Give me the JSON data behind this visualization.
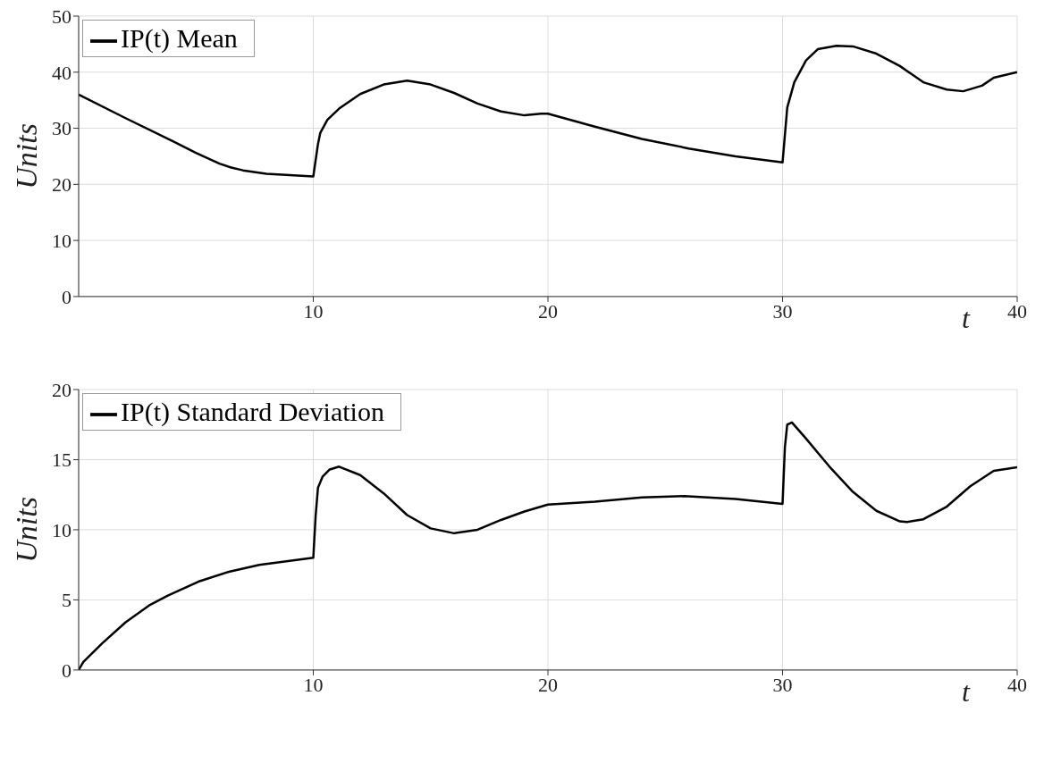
{
  "chart_data": [
    {
      "type": "line",
      "ylabel": "Units",
      "xlabel": "t",
      "xlim": [
        0,
        40
      ],
      "xticks": [
        10,
        20,
        30,
        40
      ],
      "ylim": [
        0,
        50
      ],
      "yticks": [
        0,
        10,
        20,
        30,
        40,
        50
      ],
      "grid": true,
      "legend": "top left",
      "line_style": "solid",
      "x": [
        0,
        2,
        4,
        5,
        6,
        6.5,
        7,
        8,
        10,
        10.2,
        10.3,
        10.6,
        11.1,
        12,
        13,
        14,
        15,
        16,
        17,
        18,
        19,
        19.7,
        20,
        22,
        24,
        26,
        28,
        30,
        30.1,
        30.2,
        30.5,
        31,
        31.5,
        32.3,
        33,
        34,
        35,
        36,
        37,
        37.7,
        38.5,
        39,
        40
      ],
      "series": [
        {
          "name": "IP(t) Mean",
          "color": "#000000",
          "values": [
            36,
            31.8,
            27.7,
            25.6,
            23.7,
            23,
            22.5,
            21.9,
            21.4,
            27.2,
            29.2,
            31.5,
            33.5,
            36.1,
            37.8,
            38.5,
            37.8,
            36.3,
            34.4,
            33,
            32.3,
            32.6,
            32.6,
            30.3,
            28.1,
            26.4,
            25,
            23.9,
            28.8,
            33.7,
            38.2,
            42.1,
            44.1,
            44.7,
            44.6,
            43.3,
            41.1,
            38.2,
            36.9,
            36.6,
            37.6,
            39,
            40
          ]
        }
      ]
    },
    {
      "type": "line",
      "ylabel": "Units",
      "xlabel": "t",
      "xlim": [
        0,
        40
      ],
      "xticks": [
        10,
        20,
        30,
        40
      ],
      "ylim": [
        0,
        20
      ],
      "yticks": [
        0,
        5,
        10,
        15,
        20
      ],
      "grid": true,
      "legend": "top left",
      "line_style": "solid",
      "x": [
        0,
        0.2,
        1,
        2,
        3,
        3.8,
        5.1,
        6.4,
        7.7,
        10,
        10.1,
        10.2,
        10.4,
        10.7,
        11.1,
        12,
        13,
        14,
        15,
        16,
        17,
        18,
        19,
        20,
        22,
        24,
        25.8,
        28,
        30,
        30.1,
        30.2,
        30.4,
        31,
        32,
        33,
        34,
        35,
        35.3,
        36,
        37,
        38,
        39,
        40
      ],
      "series": [
        {
          "name": "IP(t) Standard Deviation",
          "color": "#000000",
          "values": [
            0,
            0.57,
            1.9,
            3.4,
            4.6,
            5.3,
            6.3,
            7,
            7.5,
            8,
            11,
            13,
            13.8,
            14.3,
            14.5,
            13.9,
            12.6,
            11.05,
            10.1,
            9.75,
            10,
            10.7,
            11.3,
            11.8,
            12,
            12.3,
            12.4,
            12.2,
            11.85,
            15.9,
            17.5,
            17.65,
            16.5,
            14.5,
            12.7,
            11.35,
            10.6,
            10.55,
            10.75,
            11.65,
            13.1,
            14.2,
            14.45
          ]
        }
      ]
    }
  ]
}
